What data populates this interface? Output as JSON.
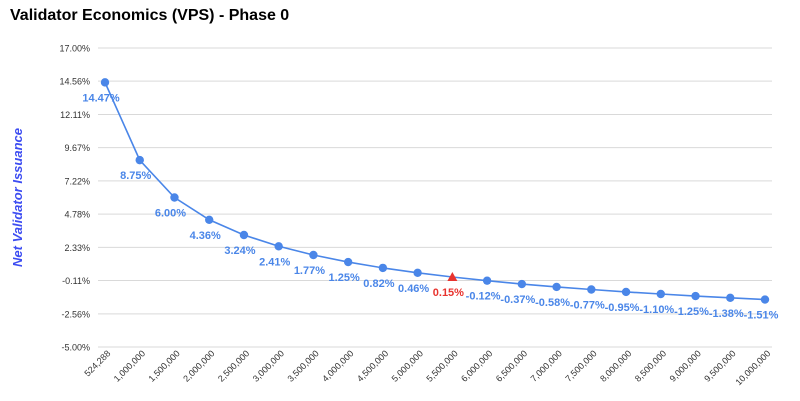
{
  "chart_data": {
    "type": "line",
    "title": "Validator Economics (VPS) - Phase 0",
    "xlabel": "",
    "ylabel": "Net Validator Issuance",
    "ylim": [
      -5.0,
      17.0
    ],
    "yticks": [
      17.0,
      14.56,
      12.11,
      9.67,
      7.22,
      4.78,
      2.33,
      -0.11,
      -2.56,
      -5.0
    ],
    "ytick_labels": [
      "17.00%",
      "14.56%",
      "12.11%",
      "9.67%",
      "7.22%",
      "4.78%",
      "2.33%",
      "-0.11%",
      "-2.56%",
      "-5.00%"
    ],
    "categories": [
      "524,288",
      "1,000,000",
      "1,500,000",
      "2,000,000",
      "2,500,000",
      "3,000,000",
      "3,500,000",
      "4,000,000",
      "4,500,000",
      "5,000,000",
      "5,500,000",
      "6,000,000",
      "6,500,000",
      "7,000,000",
      "7,500,000",
      "8,000,000",
      "8,500,000",
      "9,000,000",
      "9,500,000",
      "10,000,000"
    ],
    "series": [
      {
        "name": "Net Validator Issuance",
        "values": [
          14.47,
          8.75,
          6.0,
          4.36,
          3.24,
          2.41,
          1.77,
          1.25,
          0.82,
          0.46,
          0.15,
          -0.12,
          -0.37,
          -0.58,
          -0.77,
          -0.95,
          -1.1,
          -1.25,
          -1.38,
          -1.51
        ],
        "data_labels": [
          "14.47%",
          "8.75%",
          "6.00%",
          "4.36%",
          "3.24%",
          "2.41%",
          "1.77%",
          "1.25%",
          "0.82%",
          "0.46%",
          "0.15%",
          "-0.12%",
          "-0.37%",
          "-0.58%",
          "-0.77%",
          "-0.95%",
          "-1.10%",
          "-1.25%",
          "-1.38%",
          "-1.51%"
        ]
      }
    ],
    "highlight_index": 10,
    "grid": true,
    "legend": "none",
    "colors": {
      "series": "#4a86e8",
      "highlight": "#e8332e",
      "grid": "#d9d9d9",
      "axis_title": "#3d4df2"
    }
  }
}
